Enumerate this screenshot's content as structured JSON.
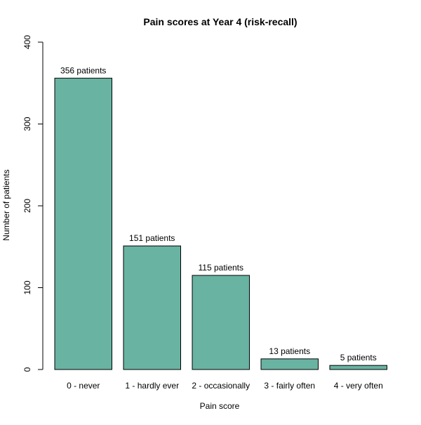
{
  "chart_data": {
    "type": "bar",
    "title": "Pain scores at Year 4 (risk-recall)",
    "xlabel": "Pain score",
    "ylabel": "Number of patients",
    "categories": [
      "0 - never",
      "1 - hardly ever",
      "2 - occasionally",
      "3 - fairly often",
      "4 - very often"
    ],
    "values": [
      356,
      151,
      115,
      13,
      5
    ],
    "data_labels": [
      "356 patients",
      "151 patients",
      "115 patients",
      "13 patients",
      "5 patients"
    ],
    "ylim": [
      0,
      400
    ],
    "yticks": [
      0,
      100,
      200,
      300,
      400
    ],
    "ytick_labels": [
      "0",
      "100",
      "200",
      "300",
      "400"
    ],
    "grid": false,
    "legend": false,
    "bar_color": "#69b3a2"
  }
}
